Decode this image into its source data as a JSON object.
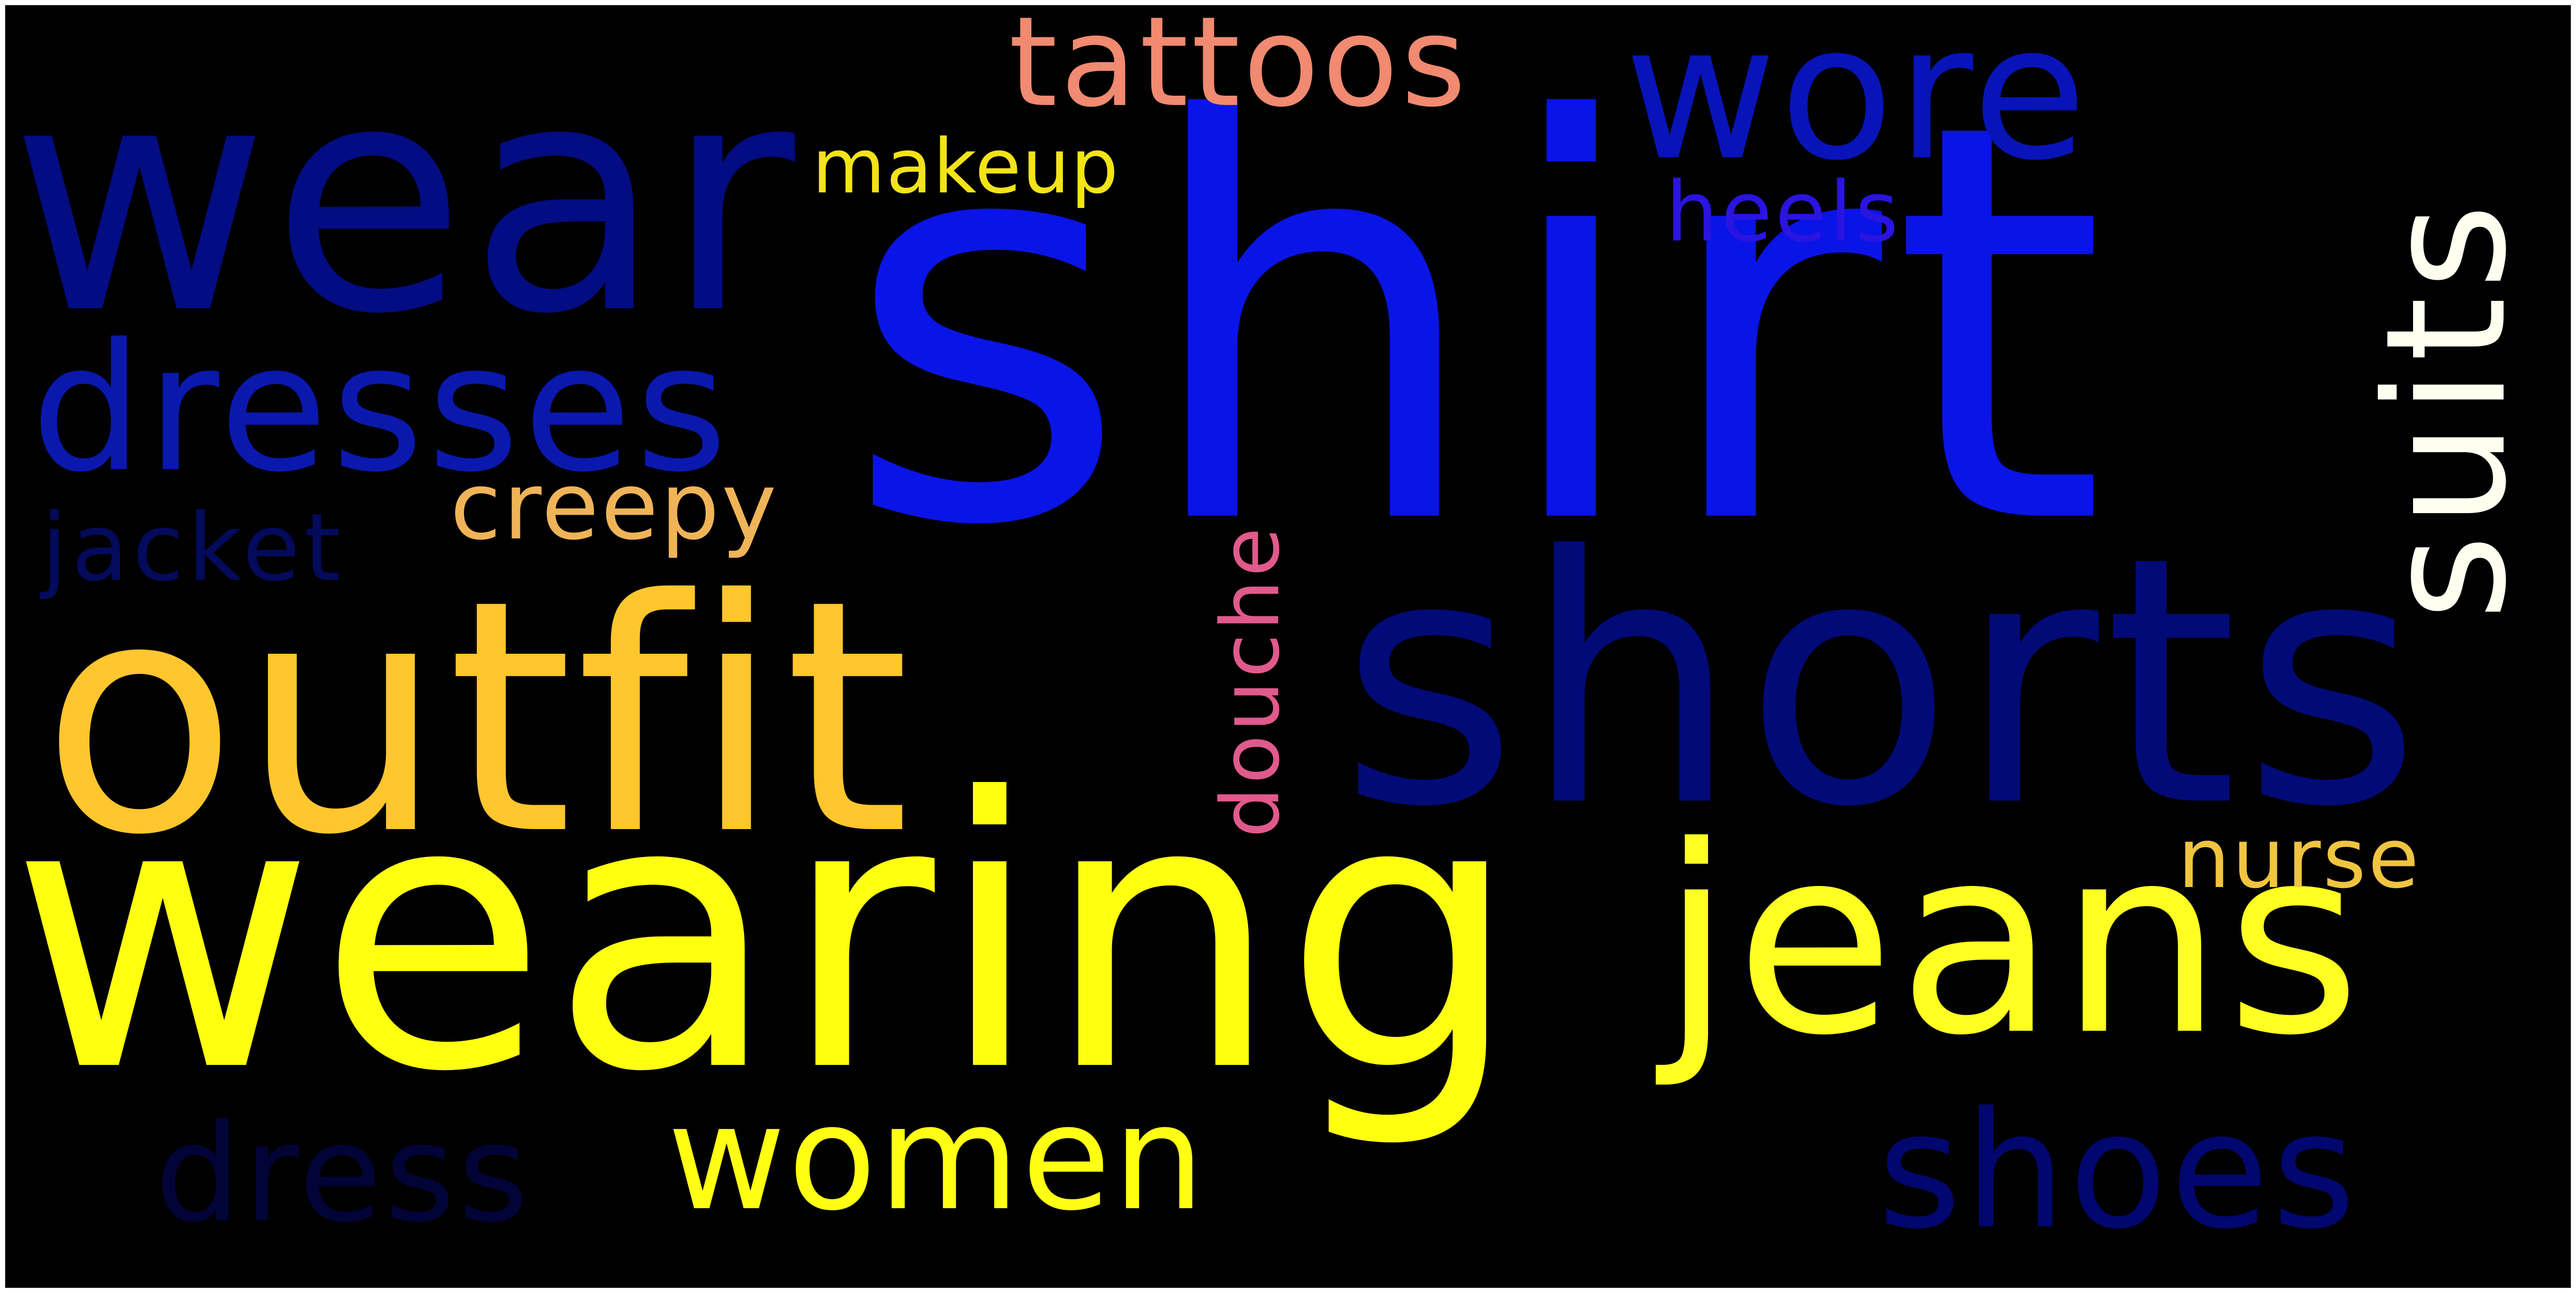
{
  "word_cloud": {
    "background_color": "#000000",
    "words": [
      {
        "text": "shirt",
        "color": "#0a14e6"
      },
      {
        "text": "wearing",
        "color": "#ffff10"
      },
      {
        "text": "shorts",
        "color": "#020a78"
      },
      {
        "text": "outfit",
        "color": "#ffc62e"
      },
      {
        "text": "wear",
        "color": "#030c82"
      },
      {
        "text": "jeans",
        "color": "#ffff21"
      },
      {
        "text": "dresses",
        "color": "#0a18ae"
      },
      {
        "text": "wore",
        "color": "#0814b8"
      },
      {
        "text": "suits",
        "color": "#fffff0"
      },
      {
        "text": "women",
        "color": "#ffff14"
      },
      {
        "text": "shoes",
        "color": "#01076e"
      },
      {
        "text": "tattoos",
        "color": "#f08a70"
      },
      {
        "text": "dress",
        "color": "#020438"
      },
      {
        "text": "creepy",
        "color": "#f0b458"
      },
      {
        "text": "jacket",
        "color": "#040a5c"
      },
      {
        "text": "douche",
        "color": "#e05a8c"
      },
      {
        "text": "nurse",
        "color": "#f0c440"
      },
      {
        "text": "heels",
        "color": "#2a14e0"
      },
      {
        "text": "makeup",
        "color": "#f2e418"
      }
    ]
  }
}
